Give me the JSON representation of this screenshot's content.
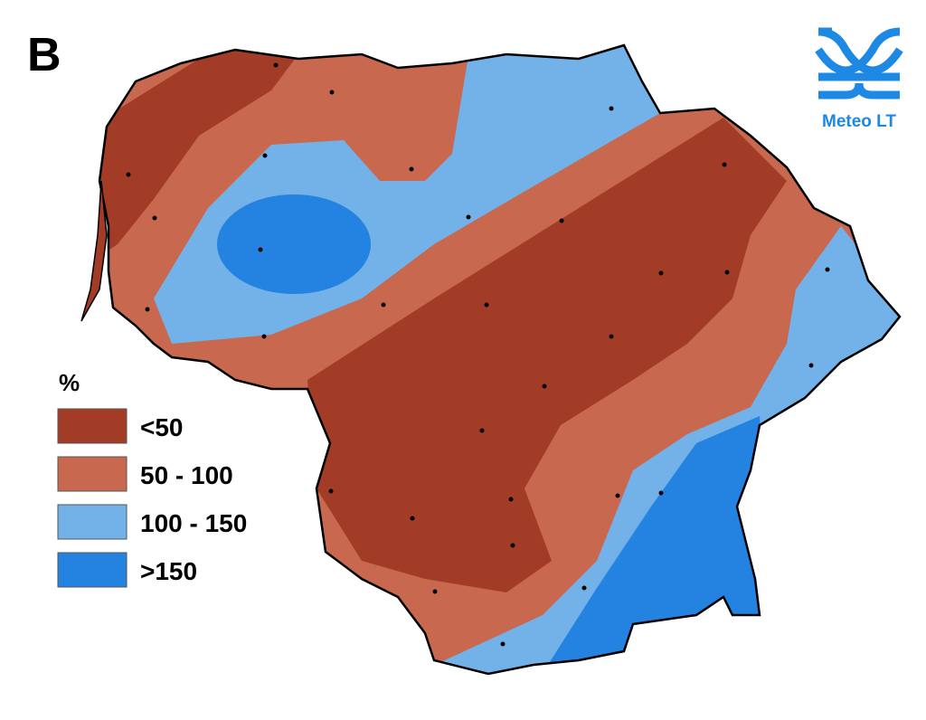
{
  "panel_label": "B",
  "logo": {
    "text": "Meteo LT",
    "color": "#1e88e5"
  },
  "legend": {
    "title": "%",
    "items": [
      {
        "label": "<50",
        "color": "#a23c26"
      },
      {
        "label": "50 - 100",
        "color": "#c8694f"
      },
      {
        "label": "100 - 150",
        "color": "#73b2e8"
      },
      {
        "label": ">150",
        "color": "#2482e0"
      }
    ]
  }
}
